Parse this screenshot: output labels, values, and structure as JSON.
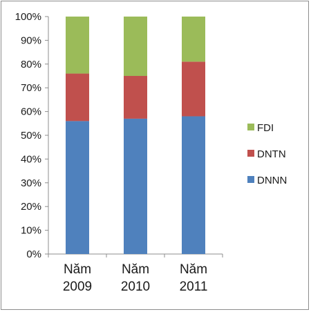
{
  "chart_data": {
    "type": "bar",
    "stacked": true,
    "categories": [
      "Năm 2009",
      "Năm 2010",
      "Năm 2011"
    ],
    "category_lines": [
      [
        "Năm",
        "2009"
      ],
      [
        "Năm",
        "2010"
      ],
      [
        "Năm",
        "2011"
      ]
    ],
    "series": [
      {
        "name": "DNNN",
        "color": "#4f81bd",
        "values": [
          56,
          57,
          58
        ]
      },
      {
        "name": "DNTN",
        "color": "#c0504d",
        "values": [
          20,
          18,
          23
        ]
      },
      {
        "name": "FDI",
        "color": "#9bbb59",
        "values": [
          24,
          25,
          19
        ]
      }
    ],
    "ylim": [
      0,
      100
    ],
    "y_ticks": [
      "0%",
      "10%",
      "20%",
      "30%",
      "40%",
      "50%",
      "60%",
      "70%",
      "80%",
      "90%",
      "100%"
    ],
    "title": "",
    "xlabel": "",
    "ylabel": "",
    "grid": false,
    "legend_position": "right",
    "legend_order": [
      "FDI",
      "DNTN",
      "DNNN"
    ]
  }
}
